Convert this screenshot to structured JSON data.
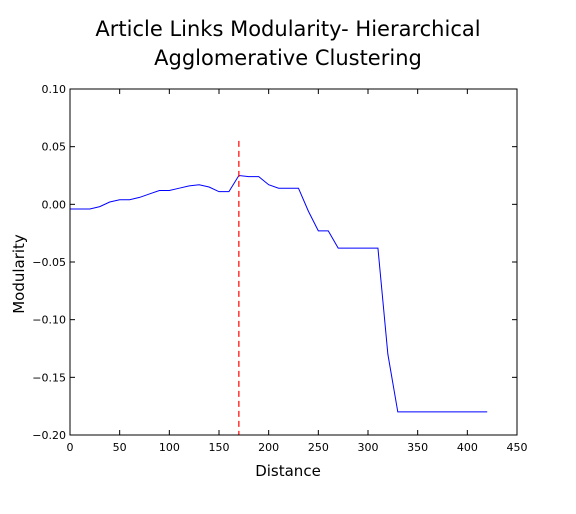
{
  "chart_data": {
    "type": "line",
    "title_lines": [
      "Article Links Modularity- Hierarchical",
      "Agglomerative Clustering"
    ],
    "xlabel": "Distance",
    "ylabel": "Modularity",
    "xlim": [
      0,
      450
    ],
    "ylim": [
      -0.2,
      0.1
    ],
    "xticks": [
      0,
      50,
      100,
      150,
      200,
      250,
      300,
      350,
      400,
      450
    ],
    "xtick_labels": [
      "0",
      "50",
      "100",
      "150",
      "200",
      "250",
      "300",
      "350",
      "400",
      "450"
    ],
    "yticks": [
      0.1,
      0.05,
      0.0,
      -0.05,
      -0.1,
      -0.15,
      -0.2
    ],
    "ytick_labels": [
      "0.10",
      "0.05",
      "0.00",
      "−0.05",
      "−0.10",
      "−0.15",
      "−0.20"
    ],
    "grid": false,
    "series": [
      {
        "color": "#0000ff",
        "x": [
          0,
          10,
          20,
          30,
          40,
          50,
          60,
          70,
          80,
          90,
          100,
          110,
          120,
          130,
          140,
          150,
          160,
          170,
          180,
          190,
          200,
          210,
          220,
          230,
          240,
          250,
          260,
          270,
          280,
          290,
          300,
          310,
          320,
          330,
          340,
          350,
          360,
          370,
          380,
          390,
          400,
          410,
          420
        ],
        "y": [
          -0.004,
          -0.004,
          -0.004,
          -0.002,
          0.002,
          0.004,
          0.004,
          0.006,
          0.009,
          0.012,
          0.012,
          0.014,
          0.016,
          0.017,
          0.015,
          0.011,
          0.011,
          0.025,
          0.024,
          0.024,
          0.017,
          0.014,
          0.014,
          0.014,
          -0.006,
          -0.023,
          -0.023,
          -0.038,
          -0.038,
          -0.038,
          -0.038,
          -0.038,
          -0.13,
          -0.18,
          -0.18,
          -0.18,
          -0.18,
          -0.18,
          -0.18,
          -0.18,
          -0.18,
          -0.18,
          -0.18
        ]
      }
    ],
    "vline": {
      "x": 170,
      "y_top": 0.055,
      "color": "#ff0000",
      "style": "dashed"
    }
  }
}
